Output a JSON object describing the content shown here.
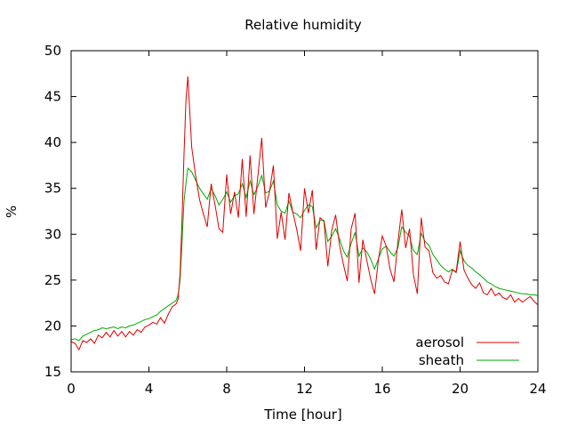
{
  "chart_data": {
    "type": "line",
    "title": "Relative humidity",
    "xlabel": "Time [hour]",
    "ylabel": "%",
    "xlim": [
      0,
      24
    ],
    "ylim": [
      15,
      50
    ],
    "xticks": [
      0,
      4,
      8,
      12,
      16,
      20,
      24
    ],
    "yticks": [
      15,
      20,
      25,
      30,
      35,
      40,
      45,
      50
    ],
    "grid": false,
    "legend_position": "bottom-right",
    "series": [
      {
        "name": "aerosol",
        "color": "#dd0000",
        "x": [
          0,
          0.2,
          0.4,
          0.6,
          0.8,
          1.0,
          1.2,
          1.4,
          1.6,
          1.8,
          2.0,
          2.2,
          2.4,
          2.6,
          2.8,
          3.0,
          3.2,
          3.4,
          3.6,
          3.8,
          4.0,
          4.2,
          4.4,
          4.6,
          4.8,
          5.0,
          5.2,
          5.4,
          5.5,
          5.6,
          5.7,
          5.8,
          5.9,
          6.0,
          6.2,
          6.4,
          6.6,
          6.8,
          7.0,
          7.2,
          7.4,
          7.6,
          7.8,
          8.0,
          8.2,
          8.4,
          8.6,
          8.8,
          9.0,
          9.2,
          9.4,
          9.6,
          9.8,
          10.0,
          10.2,
          10.4,
          10.6,
          10.8,
          11.0,
          11.2,
          11.4,
          11.6,
          11.8,
          12.0,
          12.2,
          12.4,
          12.6,
          12.8,
          13.0,
          13.2,
          13.4,
          13.6,
          13.8,
          14.0,
          14.2,
          14.4,
          14.6,
          14.8,
          15.0,
          15.2,
          15.4,
          15.6,
          15.8,
          16.0,
          16.2,
          16.4,
          16.6,
          16.8,
          17.0,
          17.2,
          17.4,
          17.6,
          17.8,
          18.0,
          18.2,
          18.4,
          18.6,
          18.8,
          19.0,
          19.2,
          19.4,
          19.6,
          19.8,
          20.0,
          20.2,
          20.4,
          20.6,
          20.8,
          21.0,
          21.2,
          21.4,
          21.6,
          21.8,
          22.0,
          22.2,
          22.4,
          22.6,
          22.8,
          23.0,
          23.2,
          23.4,
          23.6,
          23.8,
          24.0
        ],
        "values": [
          18.3,
          18.1,
          17.4,
          18.4,
          18.2,
          18.6,
          18.1,
          19.0,
          18.7,
          19.3,
          18.8,
          19.5,
          18.9,
          19.4,
          18.8,
          19.4,
          19.0,
          19.6,
          19.3,
          19.9,
          20.1,
          20.4,
          20.2,
          20.9,
          20.3,
          21.3,
          22.1,
          22.4,
          22.9,
          25.6,
          31.5,
          38.5,
          44.5,
          47.2,
          39.5,
          36.4,
          33.8,
          32.2,
          30.8,
          35.5,
          33.2,
          30.6,
          30.2,
          36.5,
          32.2,
          34.6,
          31.8,
          38.2,
          31.9,
          38.6,
          32.2,
          36.3,
          40.5,
          32.9,
          34.6,
          37.5,
          29.5,
          32.4,
          29.4,
          34.5,
          32.4,
          30.5,
          28.2,
          35.0,
          32.3,
          34.8,
          28.3,
          31.8,
          31.4,
          26.5,
          30.4,
          32.1,
          28.8,
          26.7,
          24.9,
          30.6,
          32.3,
          24.7,
          29.4,
          27.2,
          25.1,
          23.5,
          27.2,
          29.8,
          28.7,
          26.2,
          24.8,
          29.1,
          32.7,
          28.5,
          30.6,
          25.6,
          23.5,
          31.8,
          28.6,
          28.2,
          25.8,
          25.2,
          25.5,
          24.8,
          24.6,
          26.1,
          25.9,
          29.2,
          26.1,
          25.2,
          24.5,
          24.1,
          24.7,
          23.6,
          23.4,
          24.1,
          23.3,
          23.6,
          23.1,
          22.9,
          23.4,
          22.6,
          23.0,
          22.6,
          22.9,
          23.2,
          22.7,
          22.3
        ]
      },
      {
        "name": "sheath",
        "color": "#00aa00",
        "x": [
          0,
          0.2,
          0.4,
          0.6,
          0.8,
          1.0,
          1.2,
          1.4,
          1.6,
          1.8,
          2.0,
          2.2,
          2.4,
          2.6,
          2.8,
          3.0,
          3.2,
          3.4,
          3.6,
          3.8,
          4.0,
          4.2,
          4.4,
          4.6,
          4.8,
          5.0,
          5.2,
          5.4,
          5.5,
          5.6,
          5.7,
          5.8,
          5.9,
          6.0,
          6.2,
          6.4,
          6.6,
          6.8,
          7.0,
          7.2,
          7.4,
          7.6,
          7.8,
          8.0,
          8.2,
          8.4,
          8.6,
          8.8,
          9.0,
          9.2,
          9.4,
          9.6,
          9.8,
          10.0,
          10.2,
          10.4,
          10.6,
          10.8,
          11.0,
          11.2,
          11.4,
          11.6,
          11.8,
          12.0,
          12.2,
          12.4,
          12.6,
          12.8,
          13.0,
          13.2,
          13.4,
          13.6,
          13.8,
          14.0,
          14.2,
          14.4,
          14.6,
          14.8,
          15.0,
          15.2,
          15.4,
          15.6,
          15.8,
          16.0,
          16.2,
          16.4,
          16.6,
          16.8,
          17.0,
          17.2,
          17.4,
          17.6,
          17.8,
          18.0,
          18.2,
          18.4,
          18.6,
          18.8,
          19.0,
          19.2,
          19.4,
          19.6,
          19.8,
          20.0,
          20.2,
          20.4,
          20.6,
          20.8,
          21.0,
          21.2,
          21.4,
          21.6,
          21.8,
          22.0,
          22.2,
          22.4,
          22.6,
          22.8,
          23.0,
          23.2,
          23.4,
          23.6,
          23.8,
          24.0
        ],
        "values": [
          18.5,
          18.6,
          18.4,
          18.9,
          19.1,
          19.3,
          19.5,
          19.6,
          19.8,
          19.7,
          19.8,
          19.9,
          19.7,
          19.9,
          19.8,
          20.0,
          20.1,
          20.3,
          20.5,
          20.7,
          20.8,
          21.0,
          21.2,
          21.6,
          21.9,
          22.2,
          22.5,
          22.8,
          23.4,
          25.0,
          29.0,
          33.5,
          35.5,
          37.2,
          36.8,
          35.9,
          35.0,
          34.4,
          33.8,
          35.0,
          34.2,
          33.2,
          33.8,
          34.6,
          33.5,
          34.2,
          34.4,
          35.5,
          34.0,
          35.8,
          34.3,
          35.2,
          36.4,
          34.5,
          34.7,
          35.8,
          33.2,
          32.5,
          32.3,
          33.6,
          32.4,
          32.2,
          31.8,
          32.6,
          33.2,
          33.0,
          30.7,
          31.5,
          31.5,
          29.2,
          29.8,
          30.6,
          29.5,
          28.2,
          27.5,
          29.0,
          30.2,
          27.6,
          28.5,
          28.1,
          27.3,
          26.2,
          27.3,
          28.4,
          28.7,
          28.1,
          27.6,
          28.5,
          30.8,
          30.2,
          29.8,
          28.2,
          27.8,
          30.1,
          29.2,
          28.8,
          27.8,
          27.2,
          26.6,
          26.2,
          25.9,
          26.2,
          25.8,
          28.2,
          27.1,
          26.6,
          26.3,
          25.9,
          25.6,
          25.2,
          24.8,
          24.6,
          24.3,
          24.1,
          24.0,
          23.9,
          23.8,
          23.7,
          23.6,
          23.5,
          23.5,
          23.4,
          23.4,
          23.3
        ]
      }
    ]
  }
}
